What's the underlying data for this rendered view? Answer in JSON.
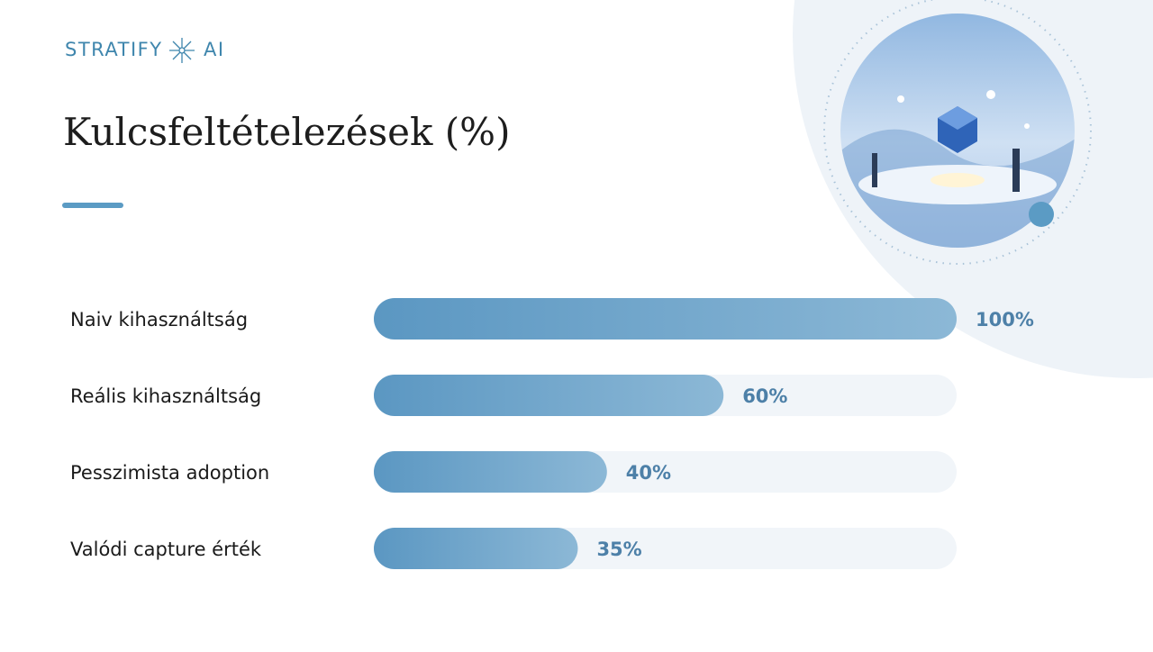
{
  "logo": [
    "STRATIFY",
    "AI"
  ],
  "chart_data": {
    "type": "bar",
    "orientation": "horizontal",
    "title": "Kulcsfeltételezések (%)",
    "categories": [
      "Naiv kihasználtság",
      "Reális kihasználtság",
      "Pesszimista adoption",
      "Valódi capture érték"
    ],
    "values": [
      100,
      60,
      40,
      35
    ],
    "value_labels": [
      "100%",
      "60%",
      "40%",
      "35%"
    ],
    "color": "#5b97c2",
    "xlim": [
      0,
      100
    ]
  }
}
